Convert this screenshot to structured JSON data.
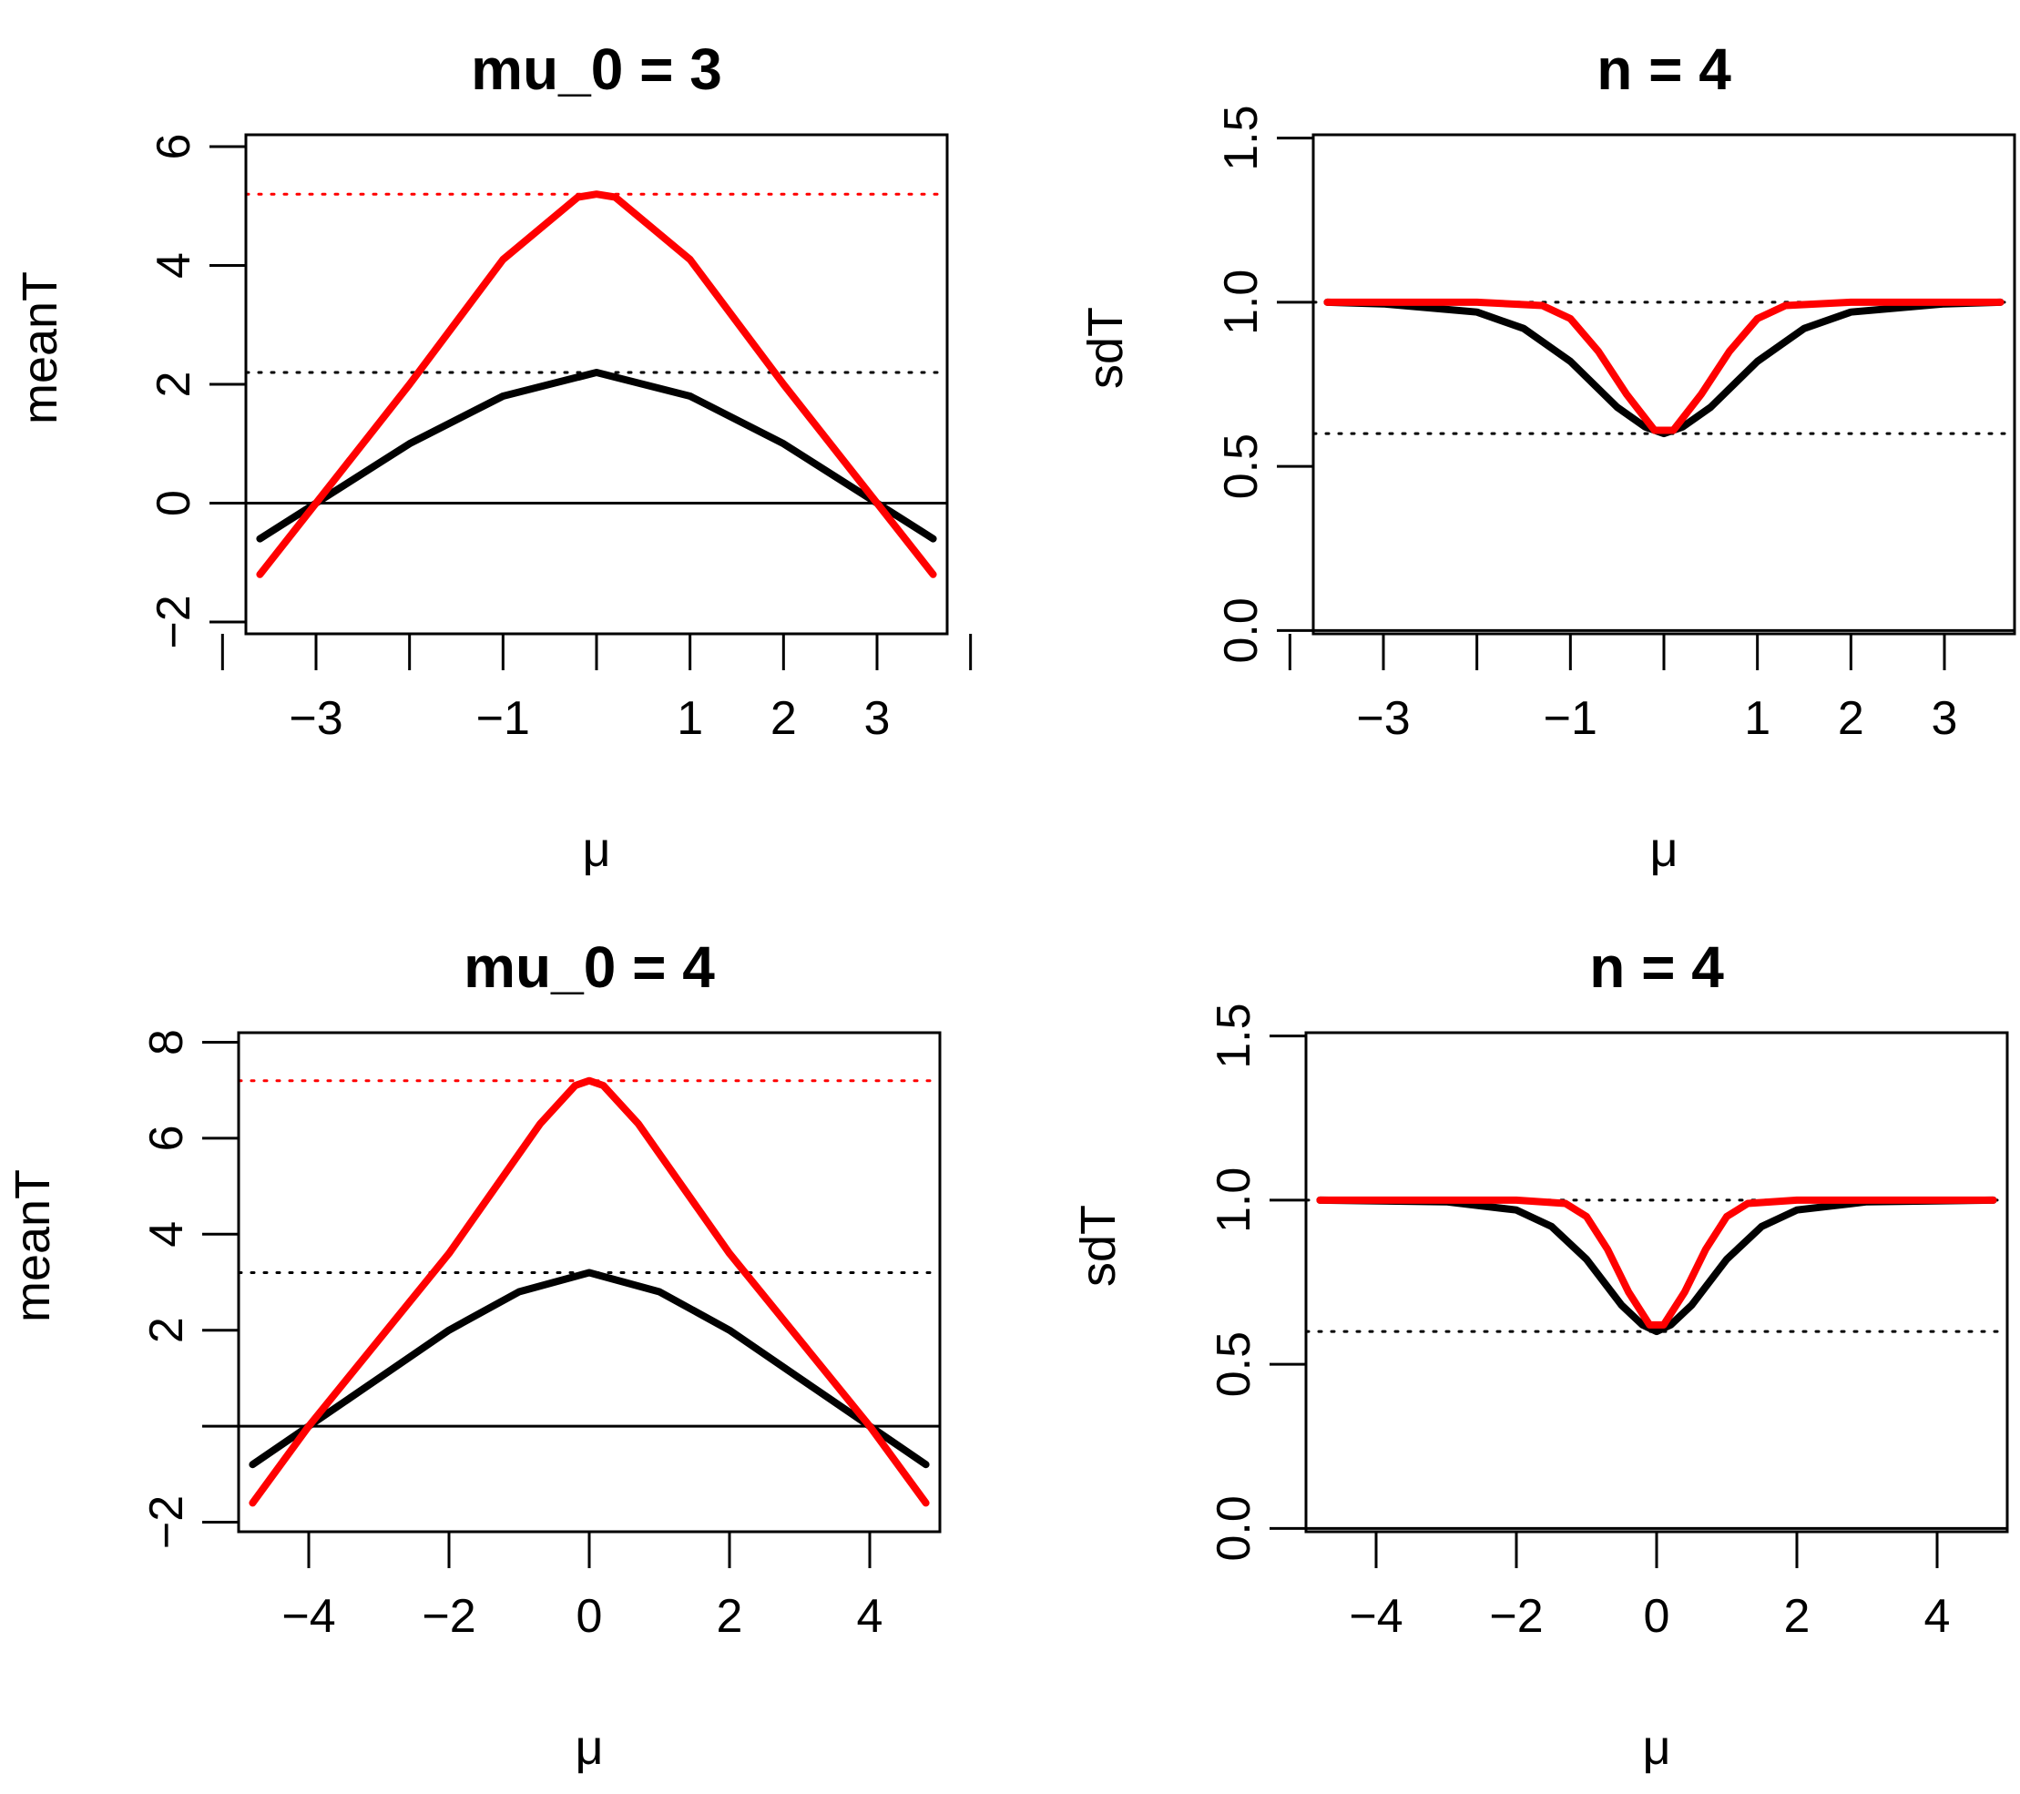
{
  "chart_data": [
    {
      "type": "line",
      "title": "mu_0 =  3",
      "xlabel": "μ",
      "ylabel": "meanT",
      "xlim": [
        -3.75,
        3.75
      ],
      "ylim": [
        -2.2,
        6.2
      ],
      "xticks": [
        -4,
        -3,
        -2,
        -1,
        0,
        1,
        2,
        3,
        4
      ],
      "xtick_labels": [
        "",
        "−3",
        "",
        "−1",
        "",
        "1",
        "2",
        "3",
        ""
      ],
      "yticks": [
        -2,
        0,
        2,
        4,
        6
      ],
      "ytick_labels": [
        "−2",
        "0",
        "2",
        "4",
        "6"
      ],
      "series": [
        {
          "name": "black",
          "color": "#000000",
          "x": [
            -3.6,
            -3,
            -2,
            -1,
            0,
            1,
            2,
            3,
            3.6
          ],
          "y": [
            -0.6,
            0,
            1,
            1.8,
            2.2,
            1.8,
            1,
            0,
            -0.6
          ]
        },
        {
          "name": "red",
          "color": "#ff0000",
          "x": [
            -3.6,
            -3,
            -2,
            -1,
            -0.2,
            0,
            0.2,
            1,
            2,
            3,
            3.6
          ],
          "y": [
            -1.2,
            0,
            2,
            4.1,
            5.15,
            5.2,
            5.15,
            4.1,
            2,
            0,
            -1.2
          ]
        }
      ],
      "hlines": [
        {
          "y": 5.2,
          "style": "dotted",
          "color": "#ff0000"
        },
        {
          "y": 2.2,
          "style": "dotted",
          "color": "#000000"
        },
        {
          "y": 0,
          "style": "solid",
          "color": "#000000"
        }
      ]
    },
    {
      "type": "line",
      "title": "n =  4",
      "xlabel": "μ",
      "ylabel": "sdT",
      "xlim": [
        -3.75,
        3.75
      ],
      "ylim": [
        -0.01,
        1.51
      ],
      "xticks": [
        -4,
        -3,
        -2,
        -1,
        0,
        1,
        2,
        3
      ],
      "xtick_labels": [
        "",
        "−3",
        "",
        "−1",
        "",
        "1",
        "2",
        "3"
      ],
      "yticks": [
        0,
        0.5,
        1,
        1.5
      ],
      "ytick_labels": [
        "0.0",
        "0.5",
        "1.0",
        "1.5"
      ],
      "series": [
        {
          "name": "black",
          "color": "#000000",
          "x": [
            -3.6,
            -3,
            -2,
            -1.5,
            -1,
            -0.5,
            -0.2,
            0,
            0.2,
            0.5,
            1,
            1.5,
            2,
            3,
            3.6
          ],
          "y": [
            1,
            0.995,
            0.97,
            0.92,
            0.82,
            0.68,
            0.62,
            0.6,
            0.62,
            0.68,
            0.82,
            0.92,
            0.97,
            0.995,
            1
          ]
        },
        {
          "name": "red",
          "color": "#ff0000",
          "x": [
            -3.6,
            -2,
            -1.3,
            -1,
            -0.7,
            -0.4,
            -0.1,
            0.1,
            0.4,
            0.7,
            1,
            1.3,
            2,
            3.6
          ],
          "y": [
            1,
            1,
            0.99,
            0.95,
            0.85,
            0.72,
            0.61,
            0.61,
            0.72,
            0.85,
            0.95,
            0.99,
            1,
            1
          ]
        }
      ],
      "hlines": [
        {
          "y": 1,
          "style": "dotted",
          "color": "#000000"
        },
        {
          "y": 0.6,
          "style": "dotted",
          "color": "#000000"
        },
        {
          "y": 0,
          "style": "solid",
          "color": "#000000"
        }
      ]
    },
    {
      "type": "line",
      "title": "mu_0 =  4",
      "xlabel": "μ",
      "ylabel": "meanT",
      "xlim": [
        -5,
        5
      ],
      "ylim": [
        -2.2,
        8.2
      ],
      "xticks": [
        -4,
        -2,
        0,
        2,
        4
      ],
      "xtick_labels": [
        "−4",
        "−2",
        "0",
        "2",
        "4"
      ],
      "yticks": [
        -2,
        0,
        2,
        4,
        6,
        8
      ],
      "ytick_labels": [
        "−2",
        "",
        "2",
        "4",
        "6",
        "8"
      ],
      "series": [
        {
          "name": "black",
          "color": "#000000",
          "x": [
            -4.8,
            -4,
            -3,
            -2,
            -1,
            0,
            1,
            2,
            3,
            4,
            4.8
          ],
          "y": [
            -0.8,
            0,
            1,
            2,
            2.8,
            3.2,
            2.8,
            2,
            1,
            0,
            -0.8
          ]
        },
        {
          "name": "red",
          "color": "#ff0000",
          "x": [
            -4.8,
            -4,
            -2,
            -0.7,
            -0.2,
            0,
            0.2,
            0.7,
            2,
            4,
            4.8
          ],
          "y": [
            -1.6,
            0,
            3.6,
            6.3,
            7.1,
            7.2,
            7.1,
            6.3,
            3.6,
            0,
            -1.6
          ]
        }
      ],
      "hlines": [
        {
          "y": 7.2,
          "style": "dotted",
          "color": "#ff0000"
        },
        {
          "y": 3.2,
          "style": "dotted",
          "color": "#000000"
        },
        {
          "y": 0,
          "style": "solid",
          "color": "#000000"
        }
      ]
    },
    {
      "type": "line",
      "title": "n =  4",
      "xlabel": "μ",
      "ylabel": "sdT",
      "xlim": [
        -5,
        5
      ],
      "ylim": [
        -0.01,
        1.51
      ],
      "xticks": [
        -4,
        -2,
        0,
        2,
        4
      ],
      "xtick_labels": [
        "−4",
        "−2",
        "0",
        "2",
        "4"
      ],
      "yticks": [
        0,
        0.5,
        1,
        1.5
      ],
      "ytick_labels": [
        "0.0",
        "0.5",
        "1.0",
        "1.5"
      ],
      "series": [
        {
          "name": "black",
          "color": "#000000",
          "x": [
            -4.8,
            -3,
            -2,
            -1.5,
            -1,
            -0.5,
            -0.2,
            0,
            0.2,
            0.5,
            1,
            1.5,
            2,
            3,
            4.8
          ],
          "y": [
            1,
            0.995,
            0.97,
            0.92,
            0.82,
            0.68,
            0.62,
            0.6,
            0.62,
            0.68,
            0.82,
            0.92,
            0.97,
            0.995,
            1
          ]
        },
        {
          "name": "red",
          "color": "#ff0000",
          "x": [
            -4.8,
            -2,
            -1.3,
            -1,
            -0.7,
            -0.4,
            -0.1,
            0.1,
            0.4,
            0.7,
            1,
            1.3,
            2,
            4.8
          ],
          "y": [
            1,
            1,
            0.99,
            0.95,
            0.85,
            0.72,
            0.62,
            0.62,
            0.72,
            0.85,
            0.95,
            0.99,
            1,
            1
          ]
        }
      ],
      "hlines": [
        {
          "y": 1,
          "style": "dotted",
          "color": "#000000"
        },
        {
          "y": 0.6,
          "style": "dotted",
          "color": "#000000"
        },
        {
          "y": 0,
          "style": "solid",
          "color": "#000000"
        }
      ]
    }
  ]
}
